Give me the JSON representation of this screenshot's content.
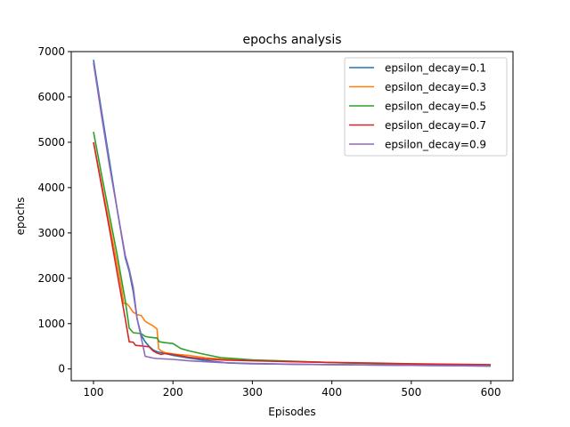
{
  "chart_data": {
    "type": "line",
    "title": "epochs analysis",
    "xlabel": "Episodes",
    "ylabel": "epochs",
    "xlim": [
      72,
      628
    ],
    "ylim": [
      -260,
      7000
    ],
    "xticks": [
      100,
      200,
      300,
      400,
      500,
      600
    ],
    "yticks": [
      0,
      1000,
      2000,
      3000,
      4000,
      5000,
      6000,
      7000
    ],
    "grid": false,
    "legend_position": "top-right",
    "series": [
      {
        "name": "epsilon_decay=0.1",
        "color": "#1f77b4",
        "points": [
          [
            100,
            6820
          ],
          [
            110,
            5700
          ],
          [
            120,
            4600
          ],
          [
            130,
            3500
          ],
          [
            140,
            2450
          ],
          [
            145,
            2150
          ],
          [
            150,
            1700
          ],
          [
            155,
            1100
          ],
          [
            160,
            750
          ],
          [
            165,
            600
          ],
          [
            170,
            500
          ],
          [
            175,
            420
          ],
          [
            180,
            380
          ],
          [
            190,
            340
          ],
          [
            200,
            300
          ],
          [
            210,
            270
          ],
          [
            220,
            240
          ],
          [
            240,
            190
          ],
          [
            260,
            150
          ],
          [
            270,
            130
          ],
          [
            300,
            115
          ],
          [
            350,
            105
          ],
          [
            400,
            95
          ],
          [
            450,
            88
          ],
          [
            500,
            80
          ],
          [
            550,
            72
          ],
          [
            600,
            62
          ]
        ]
      },
      {
        "name": "epsilon_decay=0.3",
        "color": "#ff7f0e",
        "points": [
          [
            100,
            5000
          ],
          [
            110,
            4100
          ],
          [
            120,
            3200
          ],
          [
            130,
            2300
          ],
          [
            135,
            1800
          ],
          [
            138,
            1450
          ],
          [
            142,
            1440
          ],
          [
            145,
            1380
          ],
          [
            150,
            1250
          ],
          [
            155,
            1200
          ],
          [
            160,
            1180
          ],
          [
            165,
            1050
          ],
          [
            170,
            1000
          ],
          [
            175,
            950
          ],
          [
            180,
            880
          ],
          [
            182,
            450
          ],
          [
            185,
            400
          ],
          [
            190,
            360
          ],
          [
            200,
            330
          ],
          [
            220,
            300
          ],
          [
            240,
            250
          ],
          [
            260,
            220
          ],
          [
            300,
            190
          ],
          [
            350,
            160
          ],
          [
            400,
            140
          ],
          [
            450,
            125
          ],
          [
            500,
            110
          ],
          [
            550,
            100
          ],
          [
            600,
            90
          ]
        ]
      },
      {
        "name": "epsilon_decay=0.5",
        "color": "#2ca02c",
        "points": [
          [
            100,
            5230
          ],
          [
            110,
            4300
          ],
          [
            120,
            3400
          ],
          [
            130,
            2500
          ],
          [
            140,
            1500
          ],
          [
            145,
            900
          ],
          [
            150,
            800
          ],
          [
            155,
            790
          ],
          [
            160,
            780
          ],
          [
            165,
            720
          ],
          [
            170,
            700
          ],
          [
            175,
            690
          ],
          [
            180,
            680
          ],
          [
            183,
            600
          ],
          [
            190,
            580
          ],
          [
            200,
            560
          ],
          [
            210,
            450
          ],
          [
            220,
            400
          ],
          [
            230,
            360
          ],
          [
            240,
            320
          ],
          [
            260,
            250
          ],
          [
            300,
            200
          ],
          [
            350,
            170
          ],
          [
            400,
            140
          ],
          [
            450,
            120
          ],
          [
            500,
            105
          ],
          [
            550,
            90
          ],
          [
            600,
            80
          ]
        ]
      },
      {
        "name": "epsilon_decay=0.7",
        "color": "#d62728",
        "points": [
          [
            100,
            5000
          ],
          [
            110,
            4050
          ],
          [
            120,
            3100
          ],
          [
            130,
            2100
          ],
          [
            140,
            1100
          ],
          [
            145,
            600
          ],
          [
            150,
            590
          ],
          [
            153,
            520
          ],
          [
            160,
            510
          ],
          [
            165,
            500
          ],
          [
            170,
            490
          ],
          [
            175,
            400
          ],
          [
            180,
            350
          ],
          [
            185,
            320
          ],
          [
            190,
            340
          ],
          [
            200,
            320
          ],
          [
            210,
            290
          ],
          [
            220,
            260
          ],
          [
            240,
            220
          ],
          [
            260,
            200
          ],
          [
            300,
            180
          ],
          [
            350,
            160
          ],
          [
            400,
            145
          ],
          [
            450,
            130
          ],
          [
            500,
            115
          ],
          [
            550,
            105
          ],
          [
            600,
            95
          ]
        ]
      },
      {
        "name": "epsilon_decay=0.9",
        "color": "#9467bd",
        "points": [
          [
            100,
            6750
          ],
          [
            110,
            5600
          ],
          [
            120,
            4500
          ],
          [
            130,
            3500
          ],
          [
            140,
            2500
          ],
          [
            145,
            2200
          ],
          [
            150,
            1800
          ],
          [
            155,
            1100
          ],
          [
            160,
            700
          ],
          [
            165,
            280
          ],
          [
            170,
            260
          ],
          [
            175,
            240
          ],
          [
            180,
            230
          ],
          [
            190,
            220
          ],
          [
            200,
            210
          ],
          [
            220,
            180
          ],
          [
            240,
            160
          ],
          [
            260,
            140
          ],
          [
            300,
            120
          ],
          [
            350,
            105
          ],
          [
            400,
            95
          ],
          [
            450,
            88
          ],
          [
            500,
            80
          ],
          [
            550,
            72
          ],
          [
            600,
            65
          ]
        ]
      }
    ]
  }
}
